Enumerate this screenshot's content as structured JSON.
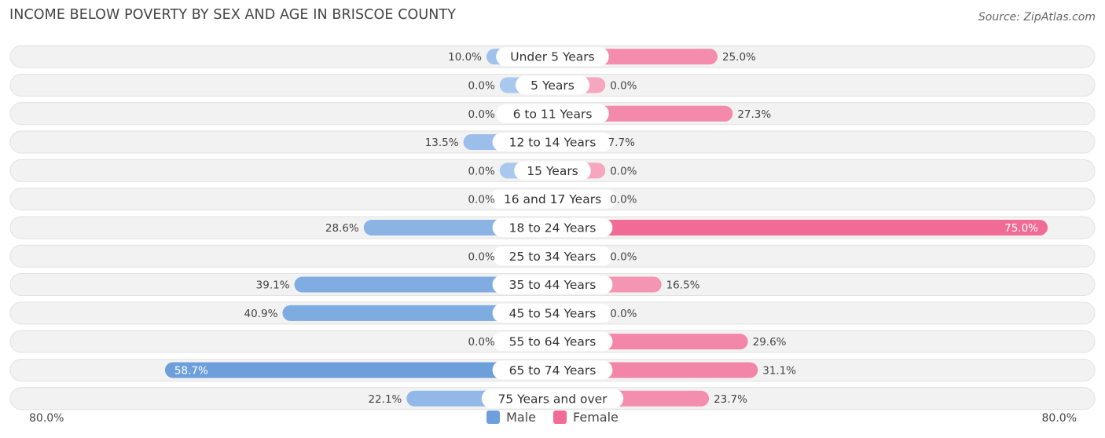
{
  "header": {
    "title": "INCOME BELOW POVERTY BY SEX AND AGE IN BRISCOE COUNTY",
    "source": "Source: ZipAtlas.com"
  },
  "colors": {
    "male": "#6d9fdb",
    "male_light": "#a9c8ee",
    "female": "#f06b95",
    "female_light": "#f6a6bf",
    "row_bg": "#f2f2f2",
    "row_border": "#e2e2e2"
  },
  "chart_data": {
    "type": "bar",
    "orientation": "horizontal-diverging",
    "title": "INCOME BELOW POVERTY BY SEX AND AGE IN BRISCOE COUNTY",
    "categories": [
      "Under 5 Years",
      "5 Years",
      "6 to 11 Years",
      "12 to 14 Years",
      "15 Years",
      "16 and 17 Years",
      "18 to 24 Years",
      "25 to 34 Years",
      "35 to 44 Years",
      "45 to 54 Years",
      "55 to 64 Years",
      "65 to 74 Years",
      "75 Years and over"
    ],
    "series": [
      {
        "name": "Male",
        "values": [
          10.0,
          0.0,
          0.0,
          13.5,
          0.0,
          0.0,
          28.6,
          0.0,
          39.1,
          40.9,
          0.0,
          58.7,
          22.1
        ],
        "labels": [
          "10.0%",
          "0.0%",
          "0.0%",
          "13.5%",
          "0.0%",
          "0.0%",
          "28.6%",
          "0.0%",
          "39.1%",
          "40.9%",
          "0.0%",
          "58.7%",
          "22.1%"
        ]
      },
      {
        "name": "Female",
        "values": [
          25.0,
          0.0,
          27.3,
          7.7,
          0.0,
          0.0,
          75.0,
          0.0,
          16.5,
          0.0,
          29.6,
          31.1,
          23.7
        ],
        "labels": [
          "25.0%",
          "0.0%",
          "27.3%",
          "7.7%",
          "0.0%",
          "0.0%",
          "75.0%",
          "0.0%",
          "16.5%",
          "0.0%",
          "29.6%",
          "31.1%",
          "23.7%"
        ]
      }
    ],
    "xlim": [
      -80,
      80
    ],
    "axis_min_label": "80.0%",
    "axis_max_label": "80.0%",
    "legend": [
      "Male",
      "Female"
    ],
    "legend_position": "bottom-center"
  }
}
